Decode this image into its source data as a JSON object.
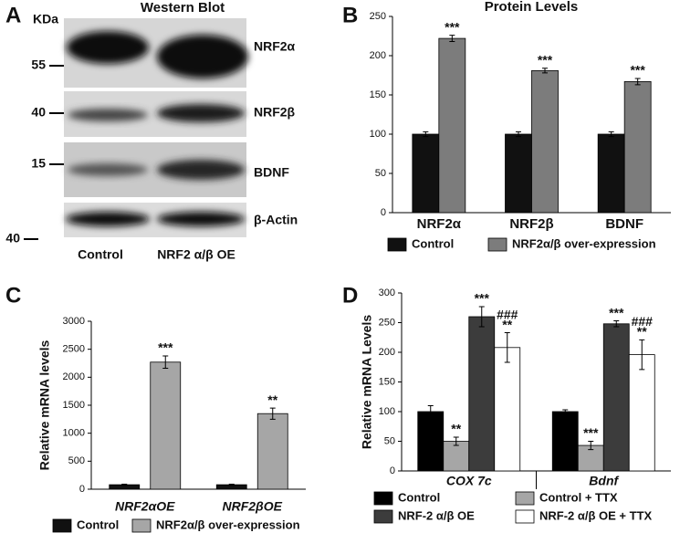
{
  "western_blot": {
    "panel": "A",
    "title": "Western Blot",
    "unit": "KDa",
    "markers": [
      "55",
      "40",
      "15",
      "40"
    ],
    "proteins": [
      "NRF2α",
      "NRF2β",
      "BDNF",
      "β-Actin"
    ],
    "lanes": [
      "Control",
      "NRF2 α/β OE"
    ]
  },
  "chart_data": [
    {
      "type": "bar",
      "panel": "B",
      "title": "Protein Levels",
      "categories": [
        "NRF2α",
        "NRF2β",
        "BDNF"
      ],
      "series": [
        {
          "name": "Control",
          "color": "#111111",
          "values": [
            100,
            100,
            100
          ],
          "errors": [
            3,
            3,
            3
          ]
        },
        {
          "name": "NRF2α/β over-expression",
          "color": "#7c7c7c",
          "values": [
            222,
            181,
            167
          ],
          "errors": [
            4,
            3,
            4
          ],
          "annotations": [
            [
              "***"
            ],
            [
              "***"
            ],
            [
              "***"
            ]
          ]
        }
      ],
      "ylim": [
        0,
        250
      ],
      "yticks": [
        0,
        50,
        100,
        150,
        200,
        250
      ],
      "grid": false
    },
    {
      "type": "bar",
      "panel": "C",
      "ylabel": "Relative mRNA levels",
      "categories": [
        "NRF2αOE",
        "NRF2βOE"
      ],
      "series": [
        {
          "name": "Control",
          "color": "#111111",
          "values": [
            80,
            80
          ],
          "errors": [
            10,
            10
          ]
        },
        {
          "name": "NRF2α/β over-expression",
          "color": "#a6a6a6",
          "values": [
            2270,
            1350
          ],
          "errors": [
            110,
            100
          ],
          "annotations": [
            [
              "***"
            ],
            [
              "**"
            ]
          ]
        }
      ],
      "ylim": [
        0,
        3000
      ],
      "yticks": [
        0,
        500,
        1000,
        1500,
        2000,
        2500,
        3000
      ],
      "grid": false
    },
    {
      "type": "bar",
      "panel": "D",
      "ylabel": "Relative mRNA Levels",
      "categories": [
        "COX 7c",
        "Bdnf"
      ],
      "series": [
        {
          "name": "Control",
          "color": "#000000",
          "values": [
            100,
            100
          ],
          "errors": [
            10,
            3
          ]
        },
        {
          "name": "Control + TTX",
          "color": "#a6a6a6",
          "values": [
            50,
            43
          ],
          "errors": [
            7,
            7
          ],
          "annotations": [
            [
              "**"
            ],
            [
              "***"
            ]
          ]
        },
        {
          "name": "NRF-2 α/β OE",
          "color": "#3c3c3c",
          "values": [
            260,
            248
          ],
          "errors": [
            17,
            5
          ],
          "annotations": [
            [
              "***"
            ],
            [
              "***"
            ]
          ]
        },
        {
          "name": "NRF-2 α/β OE + TTX",
          "color": "#ffffff",
          "values": [
            208,
            196
          ],
          "errors": [
            25,
            25
          ],
          "annotations": [
            [
              "**",
              "###"
            ],
            [
              "**",
              "###"
            ]
          ]
        }
      ],
      "ylim": [
        0,
        300
      ],
      "yticks": [
        0,
        50,
        100,
        150,
        200,
        250,
        300
      ],
      "grid": false
    }
  ]
}
